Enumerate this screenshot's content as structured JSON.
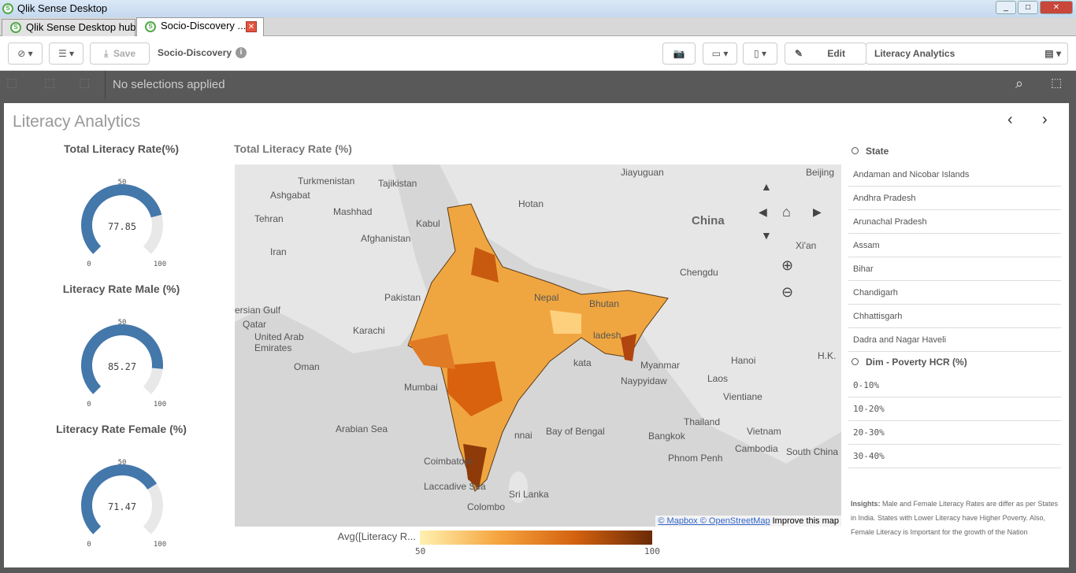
{
  "window": {
    "title": "Qlik Sense Desktop"
  },
  "tabs": [
    {
      "label": "Qlik Sense Desktop hub"
    },
    {
      "label": "Socio-Discovery ..."
    }
  ],
  "toolbar": {
    "save": "Save",
    "app_name": "Socio-Discovery",
    "edit": "Edit",
    "sheet_select": "Literacy Analytics"
  },
  "selections": {
    "status": "No selections applied"
  },
  "sheet": {
    "title": "Literacy Analytics"
  },
  "gauges": [
    {
      "title": "Total Literacy Rate(%)",
      "value": 77.85,
      "display": "77.85",
      "min": "0",
      "mid": "50",
      "max": "100"
    },
    {
      "title": "Literacy Rate Male (%)",
      "value": 85.27,
      "display": "85.27",
      "min": "0",
      "mid": "50",
      "max": "100"
    },
    {
      "title": "Literacy Rate Female (%)",
      "value": 71.47,
      "display": "71.47",
      "min": "0",
      "mid": "50",
      "max": "100"
    }
  ],
  "colors": {
    "gauge": "#4477aa",
    "gauge_track": "#e8e8e8",
    "map_bg": "#d6d6d6"
  },
  "map": {
    "title": "Total Literacy Rate (%)",
    "attribution": "© Mapbox © OpenStreetMap",
    "improve": "Improve this map",
    "labels": [
      "Turkmenistan",
      "Tajikistan",
      "Ashgabat",
      "Tehran",
      "Mashhad",
      "Hotan",
      "Jiayuguan",
      "Beijing",
      "China",
      "Kabul",
      "Afghanistan",
      "Iran",
      "Xi'an",
      "Chengdu",
      "Pakistan",
      "Nepal",
      "Bhutan",
      "ersian Gulf",
      "Qatar",
      "United Arab Emirates",
      "Karachi",
      "Oman",
      "Mumbai",
      "Arabian Sea",
      "Bay of Bengal",
      "Myanmar",
      "Naypyidaw",
      "Hanoi",
      "Laos",
      "Vientiane",
      "Thailand",
      "Bangkok",
      "Vietnam",
      "Cambodia",
      "Phnom Penh",
      "South China Sea",
      "Coimbatore",
      "Laccadive Sea",
      "Sri Lanka",
      "Colombo",
      "H.K.",
      "ladesh",
      "nnai",
      "kata"
    ],
    "legend": {
      "title": "Avg([Literacy R...",
      "min": "50",
      "max": "100"
    }
  },
  "filters": [
    {
      "title": "State",
      "items": [
        "Andaman and Nicobar Islands",
        "Andhra Pradesh",
        "Arunachal Pradesh",
        "Assam",
        "Bihar",
        "Chandigarh",
        "Chhattisgarh",
        "Dadra and Nagar Haveli"
      ]
    },
    {
      "title": "Dim - Poverty HCR (%)",
      "items": [
        "0-10%",
        "10-20%",
        "20-30%",
        "30-40%"
      ]
    }
  ],
  "insights": {
    "label": "Insights:",
    "text": " Male and Female Literacy Rates are differ as per States in India. States with Lower Literacy have Higher Poverty. Also, Female Literacy is Important for the growth of the Nation"
  }
}
